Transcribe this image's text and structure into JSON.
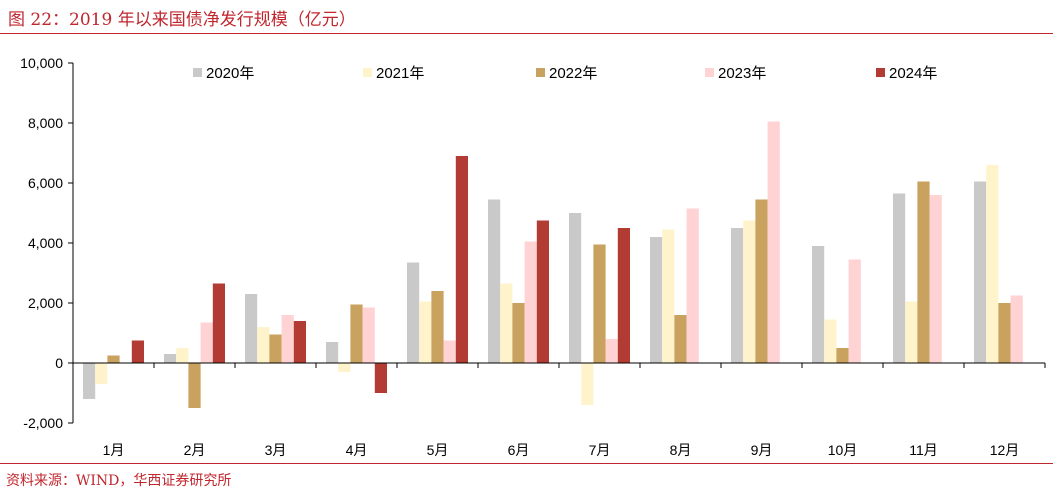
{
  "figure": {
    "title": "图 22：2019 年以来国债净发行规模（亿元）",
    "source": "资料来源：WIND，华西证券研究所"
  },
  "colors": {
    "title_red": "#c0262d",
    "series": [
      "#c9c9c9",
      "#fff3cc",
      "#c9a260",
      "#ffd2d4",
      "#b23b34"
    ]
  },
  "chart_data": {
    "type": "bar",
    "title": "",
    "xlabel": "",
    "ylabel": "",
    "ylim": [
      -2000,
      10000
    ],
    "yticks": [
      -2000,
      0,
      2000,
      4000,
      6000,
      8000,
      10000
    ],
    "ytick_labels": [
      "-2,000",
      "0",
      "2,000",
      "4,000",
      "6,000",
      "8,000",
      "10,000"
    ],
    "grid": false,
    "legend_position": "top",
    "categories": [
      "1月",
      "2月",
      "3月",
      "4月",
      "5月",
      "6月",
      "7月",
      "8月",
      "9月",
      "10月",
      "11月",
      "12月"
    ],
    "series": [
      {
        "name": "2020年",
        "values": [
          -1200,
          300,
          2300,
          700,
          3350,
          5450,
          5000,
          4200,
          4500,
          3900,
          5650,
          6050
        ]
      },
      {
        "name": "2021年",
        "values": [
          -700,
          500,
          1200,
          -300,
          2050,
          2650,
          -1400,
          4450,
          4750,
          1450,
          2050,
          6600
        ]
      },
      {
        "name": "2022年",
        "values": [
          250,
          -1500,
          950,
          1950,
          2400,
          2000,
          3950,
          1600,
          5450,
          500,
          6050,
          2000
        ]
      },
      {
        "name": "2023年",
        "values": [
          0,
          1350,
          1600,
          1850,
          750,
          4050,
          800,
          5150,
          8050,
          3450,
          5600,
          2250
        ]
      },
      {
        "name": "2024年",
        "values": [
          750,
          2650,
          1400,
          -1000,
          6900,
          4750,
          4500,
          null,
          null,
          null,
          null,
          null
        ]
      }
    ]
  }
}
